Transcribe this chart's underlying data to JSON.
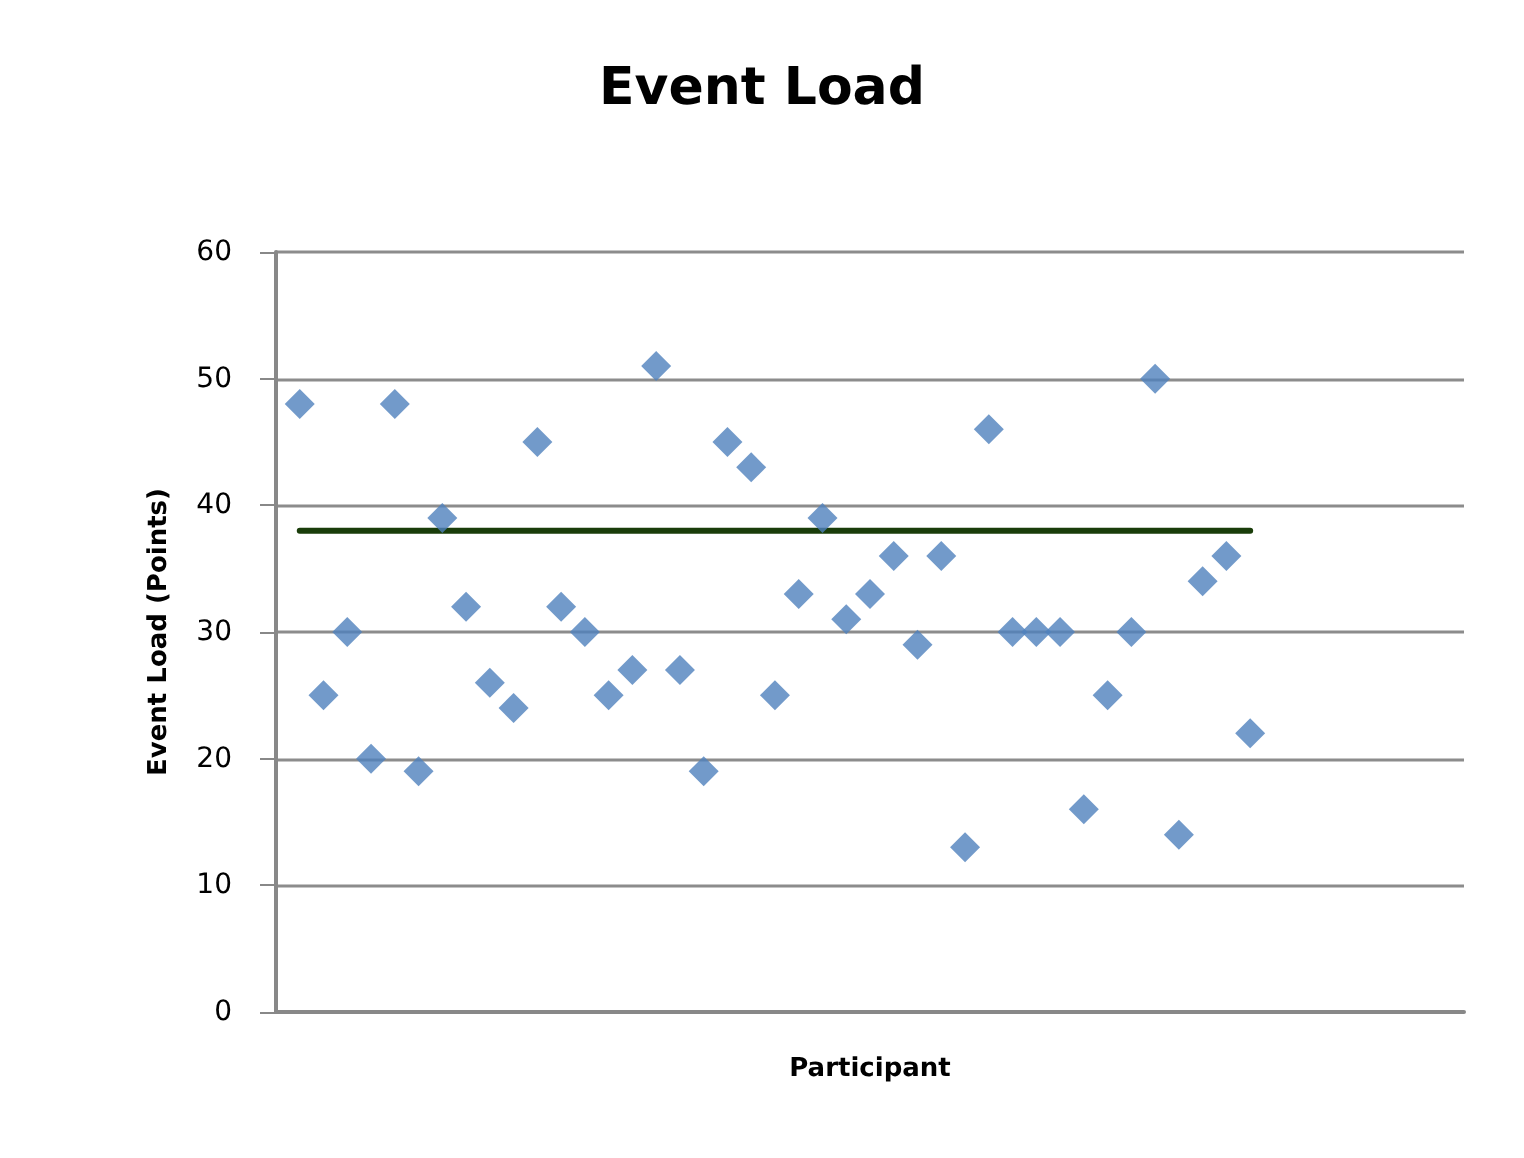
{
  "chart_data": {
    "type": "scatter",
    "title": "Event Load",
    "xlabel": "Participant",
    "ylabel": "Event Load (Points)",
    "categories": [
      null,
      null,
      null,
      null,
      null,
      null,
      null,
      null,
      null,
      null,
      null,
      null,
      null,
      null,
      null,
      null,
      null,
      null,
      null,
      null,
      null,
      null,
      null,
      null,
      null,
      null,
      null,
      null,
      null,
      null,
      null,
      null,
      null,
      null,
      null,
      null,
      null,
      null,
      null,
      null,
      null,
      null,
      null,
      null,
      null,
      null,
      null,
      null,
      null,
      null,
      null
    ],
    "series": [
      {
        "type": "scatter",
        "color": "#4f81bd",
        "marker": "diamond",
        "values": [
          null,
          48,
          25,
          30,
          20,
          48,
          19,
          39,
          32,
          26,
          24,
          45,
          32,
          30,
          25,
          27,
          51,
          27,
          19,
          45,
          43,
          25,
          33,
          39,
          31,
          33,
          36,
          29,
          36,
          13,
          46,
          30,
          30,
          30,
          16,
          25,
          30,
          50,
          14,
          34,
          36,
          22,
          null,
          null,
          null,
          null,
          null,
          null,
          null,
          null,
          null
        ]
      },
      {
        "type": "line",
        "color": "#1a3d0a",
        "marker": "none",
        "values": [
          null,
          38,
          38,
          38,
          38,
          38,
          38,
          38,
          38,
          38,
          38,
          38,
          38,
          38,
          38,
          38,
          38,
          38,
          38,
          38,
          38,
          38,
          38,
          38,
          38,
          38,
          38,
          38,
          38,
          38,
          38,
          38,
          38,
          38,
          38,
          38,
          38,
          38,
          38,
          38,
          38,
          38,
          null,
          null,
          null,
          null,
          null,
          null,
          null,
          null,
          null
        ]
      }
    ],
    "ylim": [
      0,
      60
    ],
    "yticks": [
      0,
      10,
      20,
      30,
      40,
      50,
      60
    ],
    "grid": "y"
  }
}
